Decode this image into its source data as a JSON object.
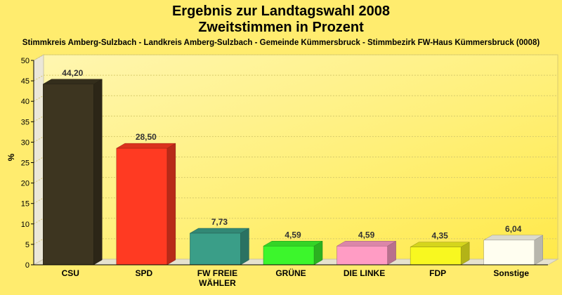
{
  "chart_data": {
    "type": "bar",
    "title": "Ergebnis zur Landtagswahl 2008",
    "subtitle": "Zweitstimmen in Prozent",
    "caption": "Stimmkreis Amberg-Sulzbach - Landkreis Amberg-Sulzbach - Gemeinde Kümmersbruck - Stimmbezirk FW-Haus Kümmersbruck (0008)",
    "ylabel": "%",
    "ylim": [
      0,
      50
    ],
    "yticks": [
      0,
      5,
      10,
      15,
      20,
      25,
      30,
      35,
      40,
      45,
      50
    ],
    "grid": true,
    "style": "3d",
    "categories": [
      [
        "CSU"
      ],
      [
        "SPD"
      ],
      [
        "FW FREIE",
        "WÄHLER"
      ],
      [
        "GRÜNE"
      ],
      [
        "DIE LINKE"
      ],
      [
        "FDP"
      ],
      [
        "Sonstige"
      ]
    ],
    "values": [
      44.2,
      28.5,
      7.73,
      4.59,
      4.59,
      4.35,
      6.04
    ],
    "value_labels": [
      "44,20",
      "28,50",
      "7,73",
      "4,59",
      "4,59",
      "4,35",
      "6,04"
    ],
    "colors": [
      "#3d3520",
      "#ff3a22",
      "#3a9e88",
      "#3cf62c",
      "#ff9cc4",
      "#f8f820",
      "#fffef0"
    ],
    "background": "#ffec6e"
  }
}
